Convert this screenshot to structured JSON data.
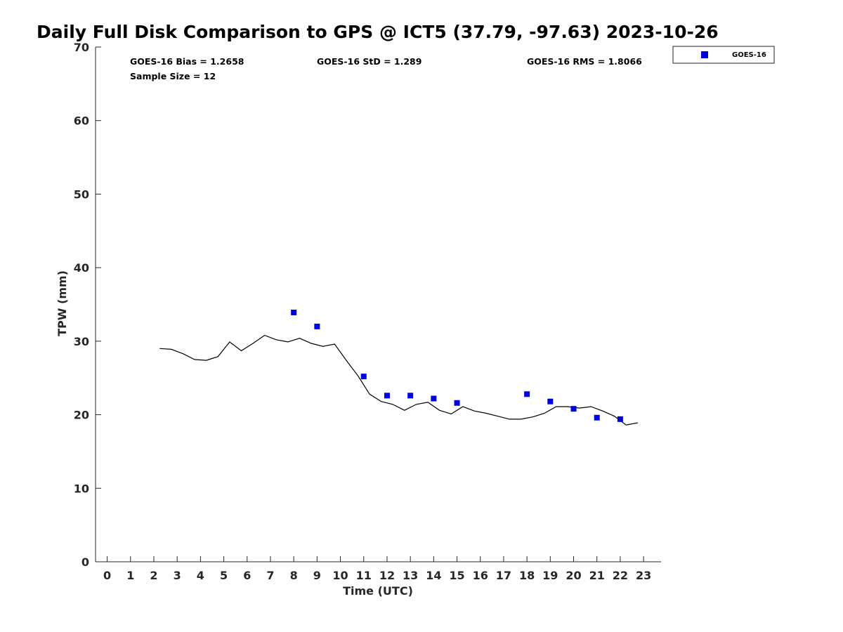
{
  "chart_data": {
    "type": "scatter",
    "title": "Daily Full Disk Comparison to GPS @ ICT5 (37.79, -97.63) 2023-10-26",
    "xlabel": "Time (UTC)",
    "ylabel": "TPW (mm)",
    "xlim": [
      -0.5,
      23.75
    ],
    "ylim": [
      0,
      70
    ],
    "xticks": [
      0,
      1,
      2,
      3,
      4,
      5,
      6,
      7,
      8,
      9,
      10,
      11,
      12,
      13,
      14,
      15,
      16,
      17,
      18,
      19,
      20,
      21,
      22,
      23
    ],
    "yticks": [
      0,
      10,
      20,
      30,
      40,
      50,
      60,
      70
    ],
    "grid": false,
    "legend_position": "top-right-outside",
    "stats": {
      "bias": "GOES-16 Bias = 1.2658",
      "std": "GOES-16 StD = 1.289",
      "rms": "GOES-16 RMS = 1.8066",
      "sample": "Sample Size = 12"
    },
    "series": [
      {
        "name": "GOES-16",
        "marker": "square",
        "color": "#0000dd",
        "x": [
          8,
          9,
          11,
          12,
          13,
          14,
          15,
          18,
          19,
          20,
          21,
          22
        ],
        "y": [
          33.9,
          32.0,
          25.2,
          22.6,
          22.6,
          22.2,
          21.6,
          22.8,
          21.8,
          20.8,
          19.6,
          19.4
        ]
      },
      {
        "marker": "line",
        "color": "#000000",
        "x": [
          2.25,
          2.75,
          3.25,
          3.75,
          4.25,
          4.75,
          5.25,
          5.75,
          6.25,
          6.75,
          7.25,
          7.75,
          8.25,
          8.75,
          9.25,
          9.75,
          10.25,
          10.75,
          11.25,
          11.75,
          12.25,
          12.75,
          13.25,
          13.75,
          14.25,
          14.75,
          15.25,
          15.75,
          16.25,
          16.75,
          17.25,
          17.75,
          18.25,
          18.75,
          19.25,
          19.75,
          20.25,
          20.75,
          21.25,
          21.75,
          22.25,
          22.75
        ],
        "y": [
          29.0,
          28.9,
          28.3,
          27.5,
          27.4,
          27.9,
          29.9,
          28.7,
          29.7,
          30.8,
          30.2,
          29.9,
          30.4,
          29.7,
          29.3,
          29.6,
          27.4,
          25.3,
          22.8,
          21.8,
          21.4,
          20.6,
          21.4,
          21.7,
          20.6,
          20.1,
          21.1,
          20.5,
          20.2,
          19.8,
          19.4,
          19.4,
          19.7,
          20.2,
          21.1,
          21.1,
          20.9,
          21.1,
          20.5,
          19.8,
          18.6,
          18.9
        ]
      }
    ]
  },
  "colors": {
    "goes_marker": "#0000dd",
    "gps_line": "#000000",
    "axis": "#262626"
  }
}
